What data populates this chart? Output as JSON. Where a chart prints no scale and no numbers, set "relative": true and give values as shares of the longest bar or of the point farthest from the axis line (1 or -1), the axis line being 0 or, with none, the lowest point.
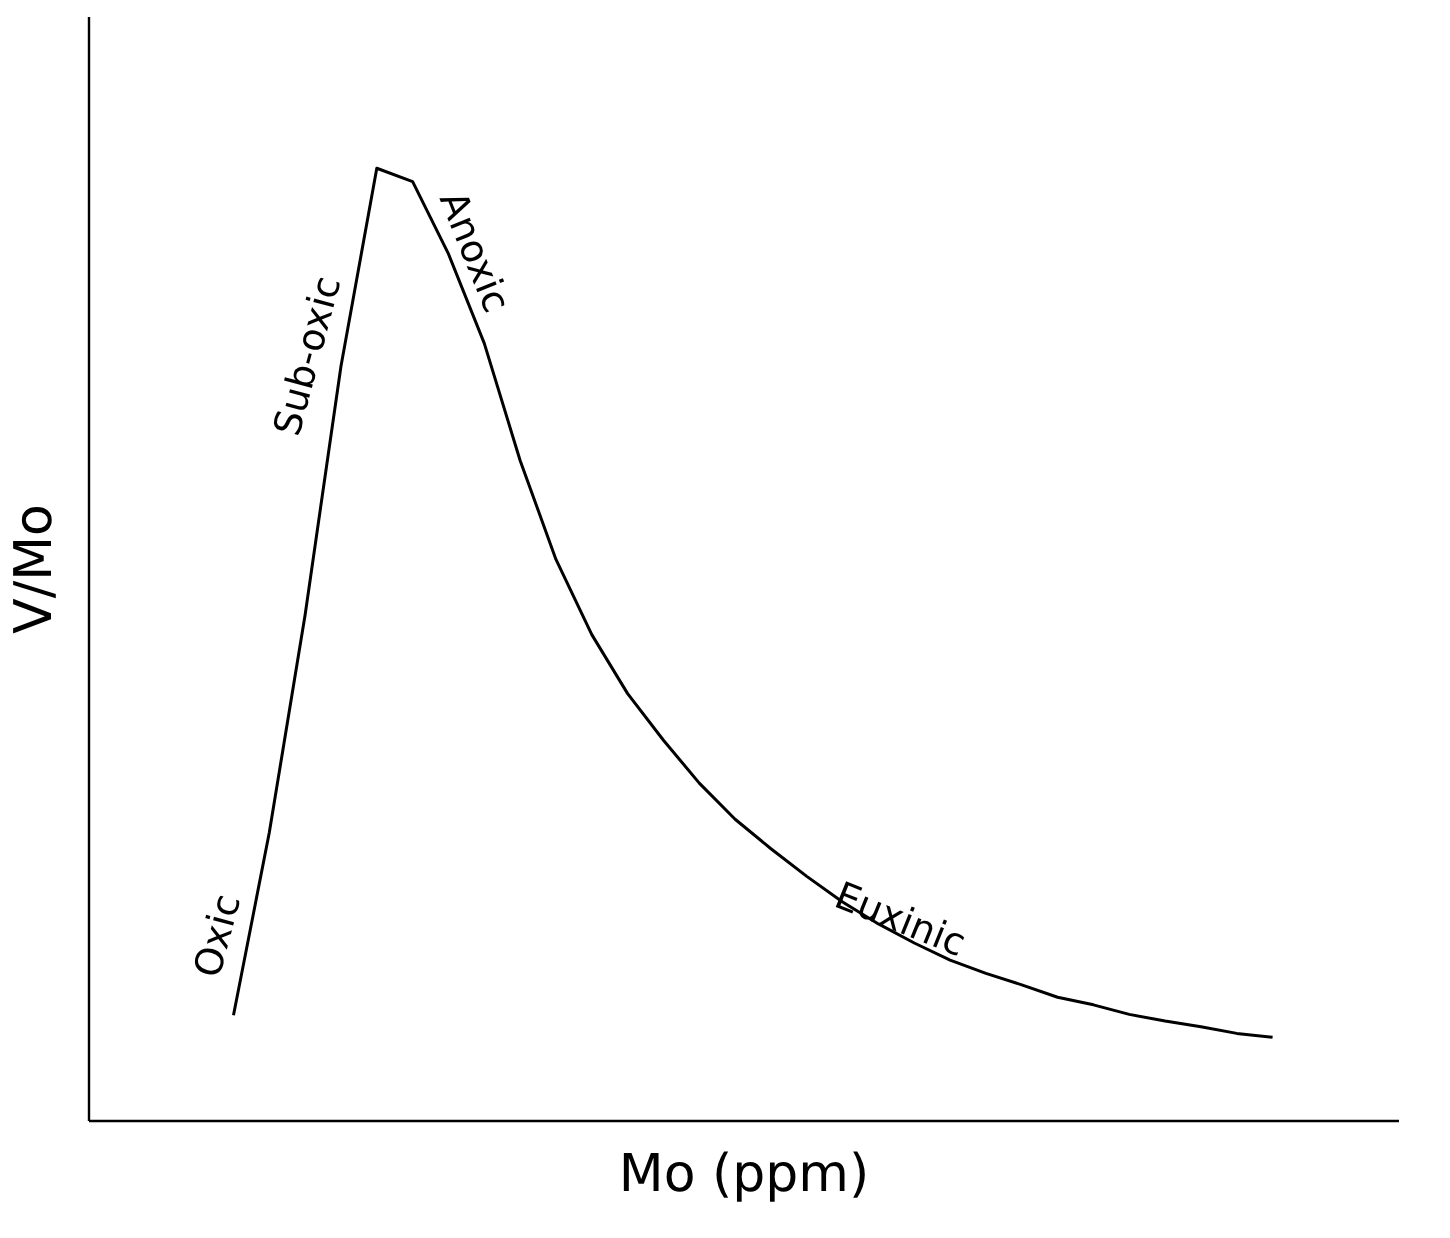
{
  "chart_data": {
    "type": "line",
    "relative": true,
    "xlabel": "Mo (ppm)",
    "ylabel": "V/Mo",
    "marker": "none",
    "line_style": "solid",
    "categories": [
      null,
      null,
      null,
      null,
      null,
      null,
      null,
      null,
      null,
      null,
      null,
      null,
      null,
      null,
      null,
      null,
      null,
      null,
      null,
      null,
      null,
      null,
      null,
      null,
      null,
      null,
      null,
      null,
      null,
      null
    ],
    "series": [
      {
        "color": "#000000",
        "values": [
          0.11,
          0.302,
          0.531,
          0.792,
          1.0,
          0.986,
          0.91,
          0.816,
          0.693,
          0.589,
          0.51,
          0.448,
          0.399,
          0.354,
          0.316,
          0.285,
          0.256,
          0.229,
          0.206,
          0.186,
          0.168,
          0.154,
          0.142,
          0.129,
          0.121,
          0.111,
          0.104,
          0.098,
          0.091,
          0.087
        ]
      }
    ],
    "annotations": [
      "Oxic",
      "Sub-oxic",
      "Anoxic",
      "Euxinic"
    ]
  }
}
